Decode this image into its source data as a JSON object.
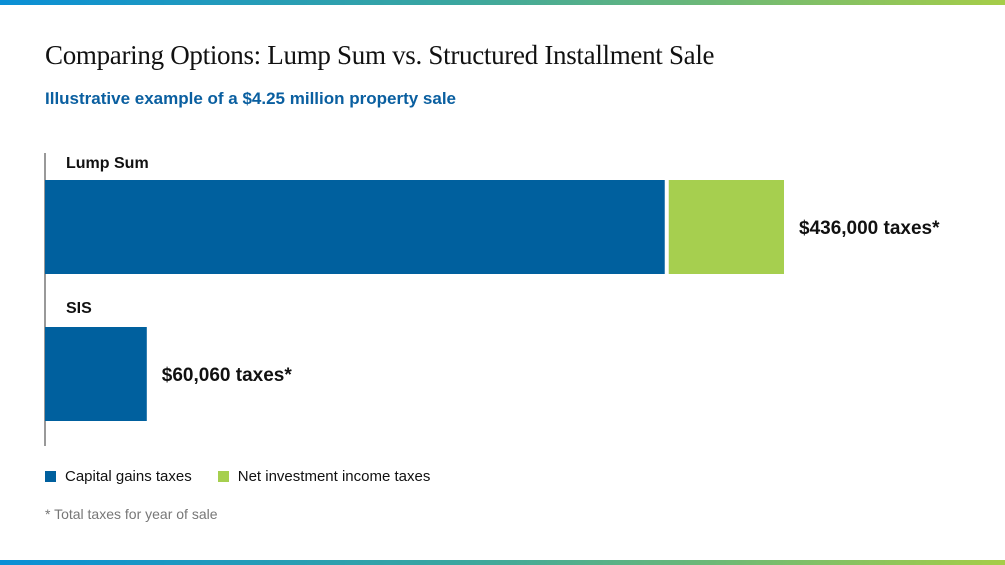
{
  "chart_data": {
    "type": "bar",
    "orientation": "horizontal",
    "stacked": true,
    "title": "Comparing Options: Lump Sum vs. Structured Installment Sale",
    "subtitle": "Illustrative example of a $4.25 million property sale",
    "categories": [
      "Lump Sum",
      "SIS"
    ],
    "series": [
      {
        "name": "Capital gains taxes",
        "color": "#00609e",
        "values": [
          368000,
          60060
        ]
      },
      {
        "name": "Net investment income taxes",
        "color": "#a6cf4f",
        "values": [
          68000,
          0
        ]
      }
    ],
    "data_labels": [
      "$436,000 taxes*",
      "$60,060 taxes*"
    ],
    "xlim": [
      0,
      436000
    ],
    "grid": false,
    "legend_position": "bottom-left",
    "footnote": "* Total taxes for year of sale"
  }
}
